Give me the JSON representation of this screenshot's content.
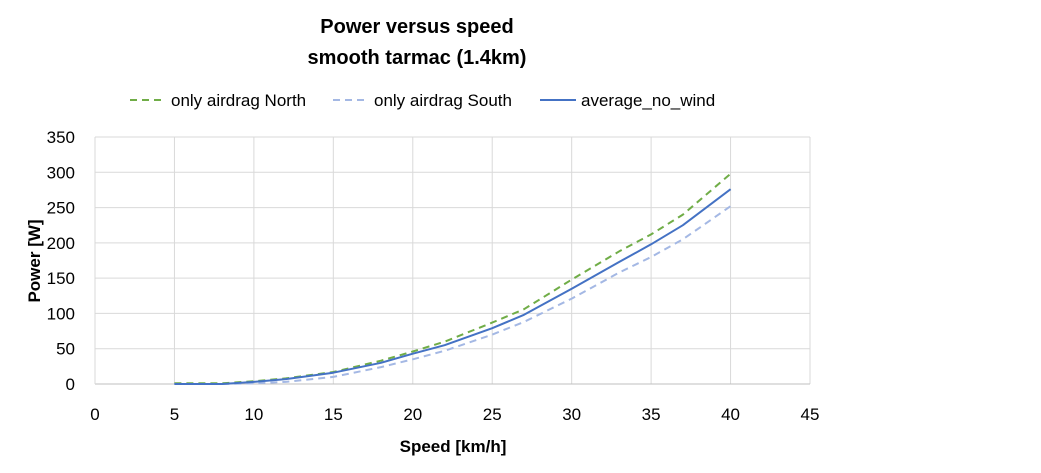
{
  "chart_data": {
    "type": "line",
    "title": "Power versus speed",
    "subtitle": "smooth tarmac (1.4km)",
    "xlabel": "Speed [km/h]",
    "ylabel": "Power [W]",
    "xlim": [
      0,
      45
    ],
    "ylim": [
      0,
      350
    ],
    "xticks": [
      0,
      5,
      10,
      15,
      20,
      25,
      30,
      35,
      40,
      45
    ],
    "yticks": [
      0,
      50,
      100,
      150,
      200,
      250,
      300,
      350
    ],
    "grid": true,
    "legend_position": "top",
    "series": [
      {
        "name": "only airdrag North",
        "color": "#70ad47",
        "style": "dashed",
        "x": [
          5,
          8,
          10,
          12,
          15,
          18,
          20,
          22,
          25,
          27,
          30,
          33,
          35,
          37,
          40
        ],
        "y": [
          1,
          1,
          4,
          8,
          17,
          33,
          46,
          60,
          87,
          106,
          148,
          188,
          212,
          240,
          298
        ]
      },
      {
        "name": "only airdrag South",
        "color": "#a4b8e4",
        "style": "dashed",
        "x": [
          5,
          8,
          10,
          12,
          15,
          18,
          20,
          22,
          25,
          27,
          30,
          33,
          35,
          37,
          40
        ],
        "y": [
          0,
          0,
          1,
          3,
          10,
          24,
          35,
          47,
          70,
          88,
          121,
          158,
          180,
          205,
          252
        ]
      },
      {
        "name": "average_no_wind",
        "color": "#4472c4",
        "style": "solid",
        "x": [
          5,
          8,
          10,
          12,
          15,
          18,
          20,
          22,
          25,
          27,
          30,
          33,
          35,
          37,
          40
        ],
        "y": [
          0,
          0,
          3,
          7,
          16,
          30,
          43,
          55,
          79,
          98,
          135,
          173,
          198,
          225,
          276
        ]
      }
    ]
  }
}
